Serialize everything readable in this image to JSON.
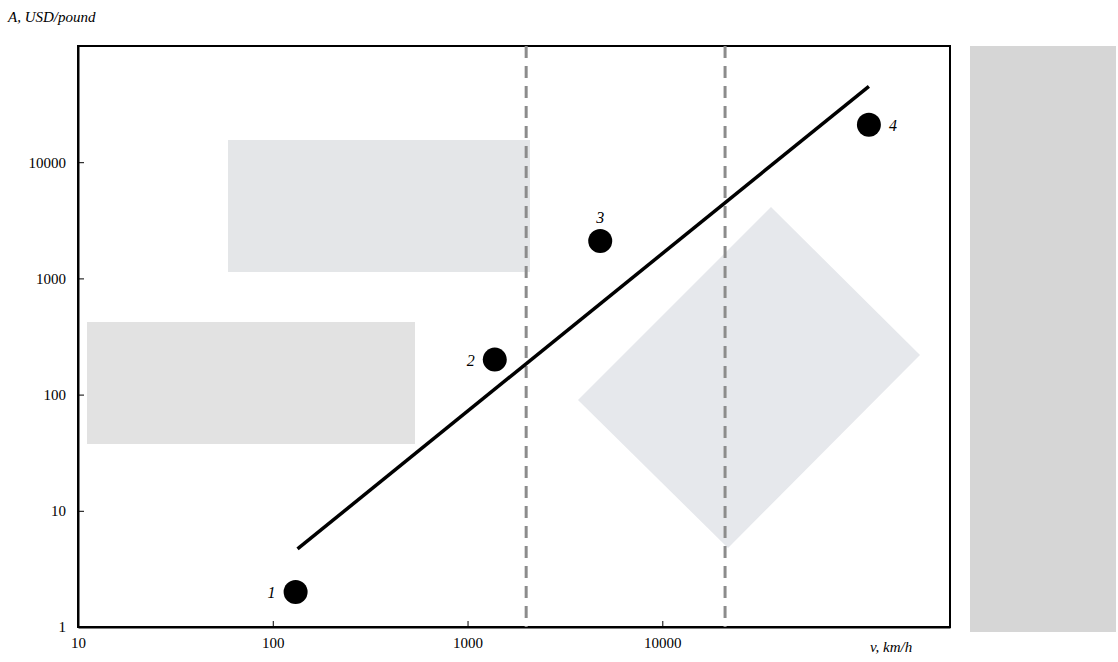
{
  "chart_data": {
    "type": "scatter",
    "x_label": "v, km/h",
    "y_label": "A, USD/pound",
    "log": true,
    "grid": false,
    "xlim": [
      10,
      300000
    ],
    "ylim": [
      1,
      100000
    ],
    "xticks": [
      10,
      100,
      1000,
      10000
    ],
    "yticks": [
      1,
      10,
      100,
      1000,
      10000
    ],
    "series": [
      {
        "type": "line",
        "x": [
          134,
          115000
        ],
        "values": [
          4.7,
          45000
        ],
        "color": "#000000",
        "line_style": "solid"
      },
      {
        "type": "scatter",
        "x": [
          131,
          1380,
          4800,
          115000
        ],
        "values": [
          2,
          200,
          2100,
          21000
        ],
        "point_labels": [
          "1",
          "2",
          "3",
          "4"
        ],
        "color": "#000000",
        "marker": "circle"
      }
    ],
    "vlines": {
      "values": [
        2000,
        21000
      ],
      "color": "#8c8c8c",
      "line_style": "dashed"
    }
  }
}
